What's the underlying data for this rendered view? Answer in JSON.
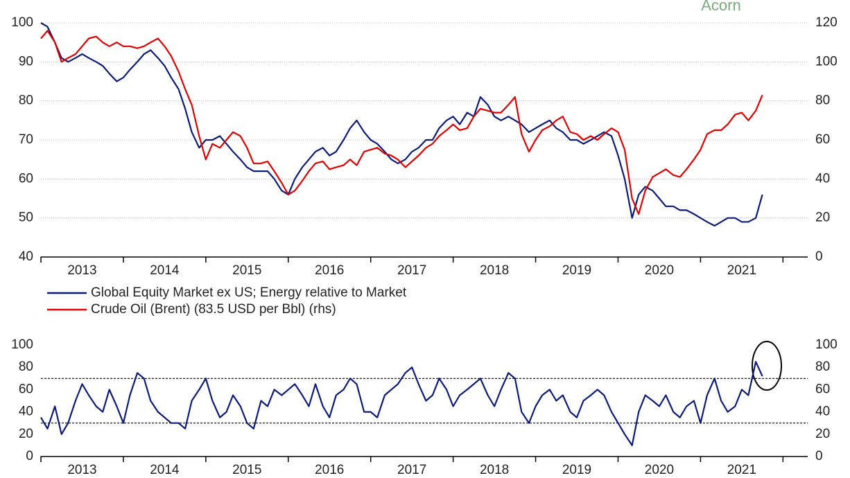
{
  "brand": "Acorn",
  "chart_data": [
    {
      "type": "line",
      "x": [
        2013,
        2013.08,
        2013.17,
        2013.25,
        2013.33,
        2013.42,
        2013.5,
        2013.58,
        2013.67,
        2013.75,
        2013.83,
        2013.92,
        2014,
        2014.08,
        2014.17,
        2014.25,
        2014.33,
        2014.42,
        2014.5,
        2014.58,
        2014.67,
        2014.75,
        2014.83,
        2014.92,
        2015,
        2015.08,
        2015.17,
        2015.25,
        2015.33,
        2015.42,
        2015.5,
        2015.58,
        2015.67,
        2015.75,
        2015.83,
        2015.92,
        2016,
        2016.08,
        2016.17,
        2016.25,
        2016.33,
        2016.42,
        2016.5,
        2016.58,
        2016.67,
        2016.75,
        2016.83,
        2016.92,
        2017,
        2017.08,
        2017.17,
        2017.25,
        2017.33,
        2017.42,
        2017.5,
        2017.58,
        2017.67,
        2017.75,
        2017.83,
        2017.92,
        2018,
        2018.08,
        2018.17,
        2018.25,
        2018.33,
        2018.42,
        2018.5,
        2018.58,
        2018.67,
        2018.75,
        2018.83,
        2018.92,
        2019,
        2019.08,
        2019.17,
        2019.25,
        2019.33,
        2019.42,
        2019.5,
        2019.58,
        2019.67,
        2019.75,
        2019.83,
        2019.92,
        2020,
        2020.08,
        2020.17,
        2020.25,
        2020.33,
        2020.42,
        2020.5,
        2020.58,
        2020.67,
        2020.75,
        2020.83,
        2020.92,
        2021,
        2021.08,
        2021.17,
        2021.25,
        2021.33,
        2021.42,
        2021.5,
        2021.58,
        2021.67,
        2021.75
      ],
      "xlim": [
        2013,
        2022.3
      ],
      "xticks": [
        {
          "value": 2013.5,
          "label": "2013"
        },
        {
          "value": 2014.5,
          "label": "2014"
        },
        {
          "value": 2015.5,
          "label": "2015"
        },
        {
          "value": 2016.5,
          "label": "2016"
        },
        {
          "value": 2017.5,
          "label": "2017"
        },
        {
          "value": 2018.5,
          "label": "2018"
        },
        {
          "value": 2019.5,
          "label": "2019"
        },
        {
          "value": 2020.5,
          "label": "2020"
        },
        {
          "value": 2021.5,
          "label": "2021"
        }
      ],
      "ylim": [
        40,
        100
      ],
      "yticks": [
        40,
        50,
        60,
        70,
        80,
        90,
        100
      ],
      "y2lim": [
        0,
        120
      ],
      "y2ticks": [
        0,
        20,
        40,
        60,
        80,
        100,
        120
      ],
      "grid": true,
      "series": [
        {
          "name": "Global Equity Market ex US; Energy relative to Market",
          "color": "#0a1a7a",
          "axis": "y",
          "values": [
            100,
            99,
            95,
            91,
            90,
            91,
            92,
            91,
            90,
            89,
            87,
            85,
            86,
            88,
            90,
            92,
            93,
            91,
            89,
            86,
            83,
            78,
            72,
            68,
            70,
            70,
            71,
            69,
            67,
            65,
            63,
            62,
            62,
            62,
            60,
            57,
            56,
            60,
            63,
            65,
            67,
            68,
            66,
            67,
            70,
            73,
            75,
            72,
            70,
            69,
            67,
            65,
            64,
            65,
            67,
            68,
            70,
            70,
            73,
            75,
            76,
            74,
            77,
            76,
            81,
            79,
            76,
            75,
            76,
            75,
            74,
            72,
            73,
            74,
            75,
            73,
            72,
            70,
            70,
            69,
            70,
            71,
            72,
            71,
            66,
            60,
            50,
            56,
            58,
            57,
            55,
            53,
            53,
            52,
            52,
            51,
            50,
            49,
            48,
            49,
            50,
            50,
            49,
            49,
            50,
            56
          ]
        },
        {
          "name": "Crude Oil (Brent) (83.5 USD per Bbl) (rhs)",
          "color": "#e00000",
          "axis": "y2",
          "values": [
            112,
            116,
            110,
            100,
            102,
            104,
            108,
            112,
            113,
            110,
            108,
            110,
            108,
            108,
            107,
            108,
            110,
            112,
            108,
            103,
            95,
            86,
            78,
            62,
            50,
            58,
            56,
            60,
            64,
            62,
            56,
            48,
            48,
            49,
            44,
            38,
            32,
            34,
            39,
            44,
            48,
            49,
            45,
            46,
            47,
            50,
            47,
            54,
            55,
            56,
            53,
            52,
            50,
            46,
            49,
            52,
            56,
            58,
            62,
            65,
            68,
            65,
            66,
            72,
            76,
            75,
            74,
            74,
            78,
            82,
            63,
            54,
            60,
            65,
            67,
            70,
            72,
            64,
            63,
            60,
            62,
            60,
            63,
            66,
            64,
            55,
            30,
            22,
            34,
            41,
            43,
            45,
            42,
            41,
            45,
            50,
            55,
            63,
            65,
            65,
            68,
            73,
            74,
            70,
            75,
            83
          ]
        }
      ]
    },
    {
      "type": "line",
      "x": [
        2013,
        2013.08,
        2013.17,
        2013.25,
        2013.33,
        2013.42,
        2013.5,
        2013.58,
        2013.67,
        2013.75,
        2013.83,
        2013.92,
        2014,
        2014.08,
        2014.17,
        2014.25,
        2014.33,
        2014.42,
        2014.5,
        2014.58,
        2014.67,
        2014.75,
        2014.83,
        2014.92,
        2015,
        2015.08,
        2015.17,
        2015.25,
        2015.33,
        2015.42,
        2015.5,
        2015.58,
        2015.67,
        2015.75,
        2015.83,
        2015.92,
        2016,
        2016.08,
        2016.17,
        2016.25,
        2016.33,
        2016.42,
        2016.5,
        2016.58,
        2016.67,
        2016.75,
        2016.83,
        2016.92,
        2017,
        2017.08,
        2017.17,
        2017.25,
        2017.33,
        2017.42,
        2017.5,
        2017.58,
        2017.67,
        2017.75,
        2017.83,
        2017.92,
        2018,
        2018.08,
        2018.17,
        2018.25,
        2018.33,
        2018.42,
        2018.5,
        2018.58,
        2018.67,
        2018.75,
        2018.83,
        2018.92,
        2019,
        2019.08,
        2019.17,
        2019.25,
        2019.33,
        2019.42,
        2019.5,
        2019.58,
        2019.67,
        2019.75,
        2019.83,
        2019.92,
        2020,
        2020.08,
        2020.17,
        2020.25,
        2020.33,
        2020.42,
        2020.5,
        2020.58,
        2020.67,
        2020.75,
        2020.83,
        2020.92,
        2021,
        2021.08,
        2021.17,
        2021.25,
        2021.33,
        2021.42,
        2021.5,
        2021.58,
        2021.67,
        2021.75
      ],
      "xlim": [
        2013,
        2022.3
      ],
      "xticks": [
        {
          "value": 2013.5,
          "label": "2013"
        },
        {
          "value": 2014.5,
          "label": "2014"
        },
        {
          "value": 2015.5,
          "label": "2015"
        },
        {
          "value": 2016.5,
          "label": "2016"
        },
        {
          "value": 2017.5,
          "label": "2017"
        },
        {
          "value": 2018.5,
          "label": "2018"
        },
        {
          "value": 2019.5,
          "label": "2019"
        },
        {
          "value": 2020.5,
          "label": "2020"
        },
        {
          "value": 2021.5,
          "label": "2021"
        }
      ],
      "ylim": [
        0,
        100
      ],
      "yticks": [
        0,
        20,
        40,
        60,
        80,
        100
      ],
      "y2lim": [
        0,
        100
      ],
      "y2ticks": [
        0,
        20,
        40,
        60,
        80,
        100
      ],
      "hlines": [
        70,
        30
      ],
      "series": [
        {
          "color": "#0a1a7a",
          "axis": "y",
          "values": [
            35,
            25,
            45,
            20,
            30,
            50,
            65,
            55,
            45,
            40,
            60,
            45,
            30,
            55,
            75,
            70,
            50,
            40,
            35,
            30,
            30,
            25,
            50,
            60,
            70,
            50,
            35,
            40,
            55,
            45,
            30,
            25,
            50,
            45,
            60,
            55,
            60,
            65,
            55,
            45,
            65,
            45,
            35,
            55,
            60,
            70,
            65,
            40,
            40,
            35,
            55,
            60,
            65,
            75,
            80,
            65,
            50,
            55,
            70,
            60,
            45,
            55,
            60,
            65,
            70,
            55,
            45,
            60,
            75,
            70,
            40,
            30,
            45,
            55,
            60,
            50,
            55,
            40,
            35,
            50,
            55,
            60,
            55,
            40,
            30,
            20,
            10,
            40,
            55,
            50,
            45,
            55,
            40,
            35,
            45,
            50,
            30,
            55,
            70,
            50,
            40,
            45,
            60,
            55,
            85,
            72
          ]
        }
      ]
    }
  ]
}
